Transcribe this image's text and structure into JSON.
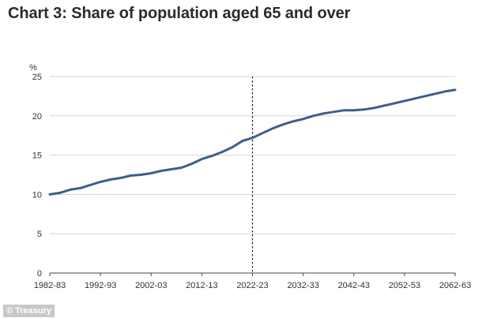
{
  "title": "Chart 3: Share of population aged 65 and over",
  "source": "© Treasury",
  "colors": {
    "line": "#3c5f8c",
    "grid": "#d4d4d4",
    "divider": "#222222"
  },
  "chart_data": {
    "type": "line",
    "title": "Chart 3: Share of population aged 65 and over",
    "ylabel": "%",
    "xlabel": "",
    "ylim": [
      0,
      25
    ],
    "yticks": [
      "0",
      "5",
      "10",
      "15",
      "20",
      "25"
    ],
    "xticks": [
      "1982-83",
      "1992-93",
      "2002-03",
      "2012-13",
      "2022-23",
      "2032-33",
      "2042-43",
      "2052-53",
      "2062-63"
    ],
    "grid": true,
    "projection_divider_year": 2022,
    "x": [
      1982,
      1984,
      1986,
      1988,
      1990,
      1992,
      1994,
      1996,
      1998,
      2000,
      2002,
      2004,
      2006,
      2008,
      2010,
      2012,
      2014,
      2016,
      2018,
      2020,
      2022,
      2024,
      2026,
      2028,
      2030,
      2032,
      2034,
      2036,
      2038,
      2040,
      2042,
      2044,
      2046,
      2048,
      2050,
      2052,
      2054,
      2056,
      2058,
      2060,
      2062
    ],
    "series": [
      {
        "values": [
          10.0,
          10.2,
          10.6,
          10.8,
          11.2,
          11.6,
          11.9,
          12.1,
          12.4,
          12.5,
          12.7,
          13.0,
          13.2,
          13.4,
          13.9,
          14.5,
          14.9,
          15.4,
          16.0,
          16.8,
          17.2,
          17.8,
          18.4,
          18.9,
          19.3,
          19.6,
          20.0,
          20.3,
          20.5,
          20.7,
          20.7,
          20.8,
          21.0,
          21.3,
          21.6,
          21.9,
          22.2,
          22.5,
          22.8,
          23.1,
          23.3
        ]
      }
    ]
  }
}
